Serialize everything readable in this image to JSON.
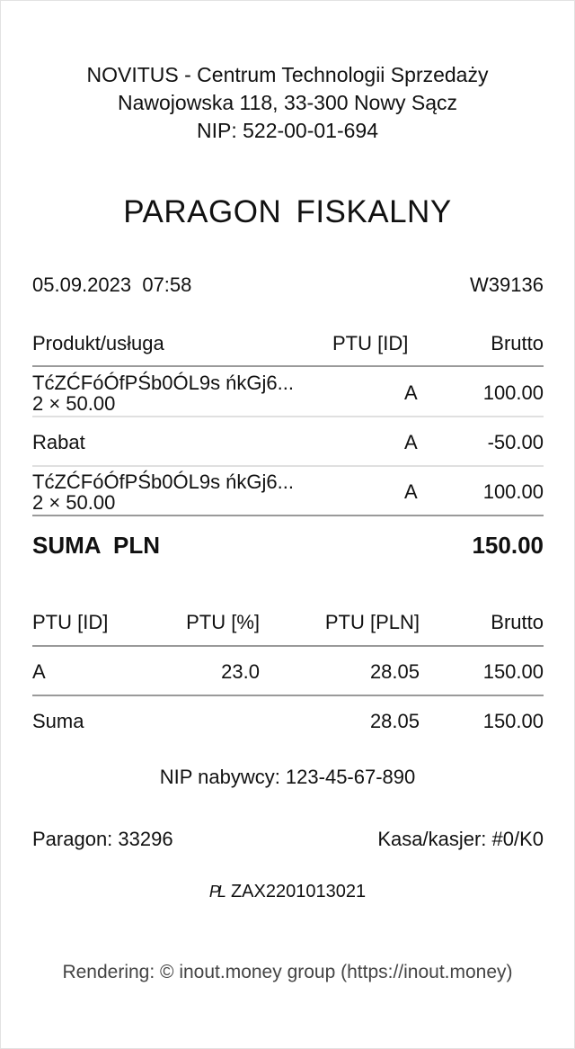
{
  "header": {
    "company": "NOVITUS - Centrum Technologii Sprzedaży",
    "address": "Nawojowska 118, 33-300 Nowy Sącz",
    "nip": "NIP: 522-00-01-694"
  },
  "title": "PARAGON FISKALNY",
  "meta": {
    "datetime": "05.09.2023  07:58",
    "number": "W39136"
  },
  "items_table": {
    "headers": {
      "product": "Produkt/usługa",
      "ptu": "PTU [ID]",
      "gross": "Brutto"
    },
    "rows": [
      {
        "name": "TćZĆFóÓfPŚb0ÓL9s ńkGj6...",
        "qty": "2 × 50.00",
        "ptu": "A",
        "gross": "100.00"
      },
      {
        "name": "Rabat",
        "ptu": "A",
        "gross": "-50.00"
      },
      {
        "name": "TćZĆFóÓfPŚb0ÓL9s ńkGj6...",
        "qty": "2 × 50.00",
        "ptu": "A",
        "gross": "100.00"
      }
    ]
  },
  "total": {
    "label": "SUMA  PLN",
    "value": "150.00"
  },
  "vat_table": {
    "headers": {
      "id": "PTU [ID]",
      "pct": "PTU [%]",
      "pln": "PTU [PLN]",
      "gross": "Brutto"
    },
    "rows": [
      {
        "id": "A",
        "pct": "23.0",
        "pln": "28.05",
        "gross": "150.00"
      }
    ],
    "sum": {
      "label": "Suma",
      "pln": "28.05",
      "gross": "150.00"
    }
  },
  "buyer_nip": "NIP nabywcy: 123-45-67-890",
  "receipt_no": "Paragon: 33296",
  "register": "Kasa/kasjer: #0/K0",
  "fiscal": {
    "logo": "PL",
    "code": "ZAX2201013021"
  },
  "footer": "Rendering: © inout.money group (https://inout.money)"
}
